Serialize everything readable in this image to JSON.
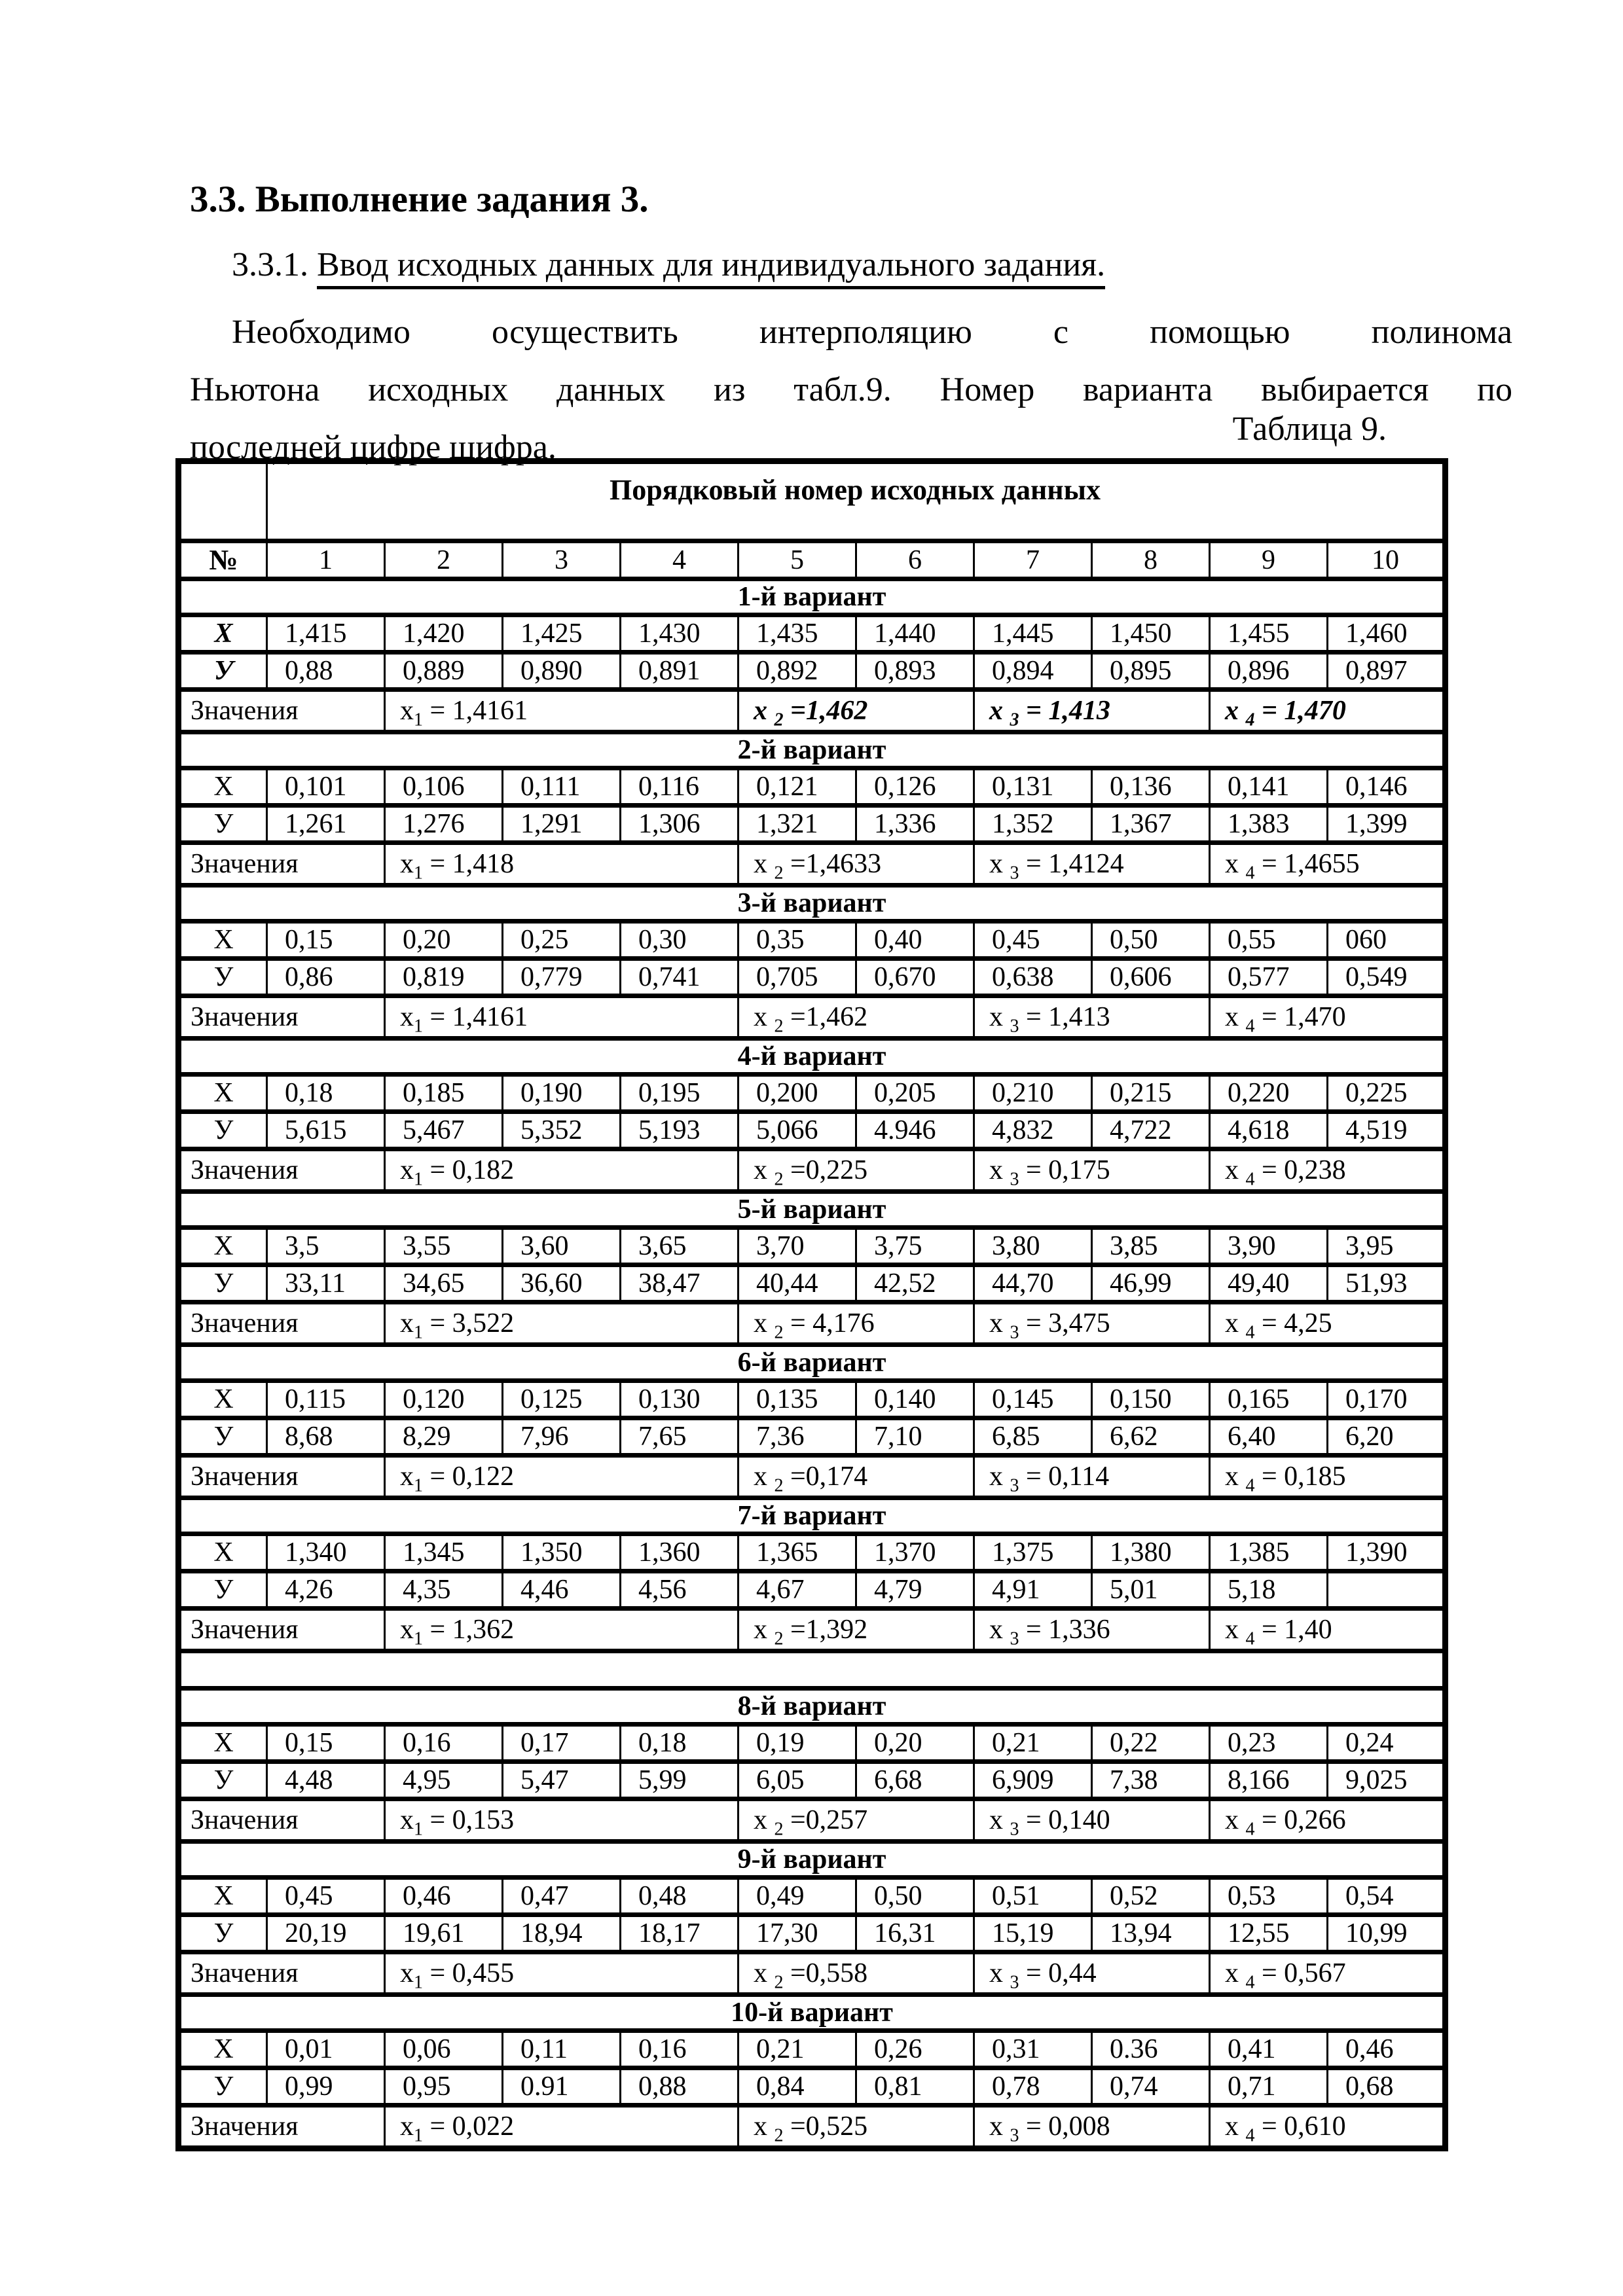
{
  "document": {
    "heading": "3.3. Выполнение задания 3.",
    "subsection_number": "3.3.1. ",
    "subsection_title": "Ввод исходных данных для индивидуального задания.",
    "paragraph_lines": [
      "Необходимо осуществить интерполяцию с помощью полинома",
      "Ньютона исходных данных из табл.9. Номер варианта выбирается по",
      "последней цифре шифра."
    ],
    "table_caption": "Таблица 9."
  },
  "table": {
    "header_title": "Порядковый номер исходных данных",
    "number_column_label": "№",
    "column_numbers": [
      "1",
      "2",
      "3",
      "4",
      "5",
      "6",
      "7",
      "8",
      "9",
      "10"
    ],
    "values_row_label": "Значения",
    "variants": [
      {
        "title": "1-й вариант",
        "x_label": "Х",
        "y_label": "У",
        "emphasis": true,
        "x": [
          "1,415",
          "1,420",
          "1,425",
          "1,430",
          "1,435",
          "1,440",
          "1,445",
          "1,450",
          "1,455",
          "1,460"
        ],
        "y": [
          "0,88",
          "0,889",
          "0,890",
          "0,891",
          "0,892",
          "0,893",
          "0,894",
          "0,895",
          "0,896",
          "0,897"
        ],
        "values": [
          {
            "pre": "x",
            "sub": "1",
            "text": " = 1,4161",
            "em": false
          },
          {
            "pre": "x ",
            "sub": "2",
            "text": " =1,462",
            "em": true
          },
          {
            "pre": "x ",
            "sub": "3",
            "text": " = 1,413",
            "em": true
          },
          {
            "pre": "x ",
            "sub": "4",
            "text": " = 1,470",
            "em": true
          }
        ]
      },
      {
        "title": "2-й вариант",
        "x_label": "Х",
        "y_label": "У",
        "emphasis": false,
        "x": [
          "0,101",
          "0,106",
          "0,111",
          "0,116",
          "0,121",
          "0,126",
          "0,131",
          "0,136",
          "0,141",
          "0,146"
        ],
        "y": [
          "1,261",
          "1,276",
          "1,291",
          "1,306",
          "1,321",
          "1,336",
          "1,352",
          "1,367",
          "1,383",
          "1,399"
        ],
        "values": [
          {
            "pre": "x",
            "sub": "1",
            "text": " = 1,418",
            "em": false
          },
          {
            "pre": "x ",
            "sub": "2",
            "text": " =1,4633",
            "em": false
          },
          {
            "pre": "x ",
            "sub": "3",
            "text": " = 1,4124",
            "em": false
          },
          {
            "pre": "x ",
            "sub": "4",
            "text": " = 1,4655",
            "em": false
          }
        ]
      },
      {
        "title": "3-й вариант",
        "x_label": "Х",
        "y_label": "У",
        "emphasis": false,
        "x": [
          "0,15",
          "0,20",
          "0,25",
          "0,30",
          "0,35",
          "0,40",
          "0,45",
          "0,50",
          "0,55",
          "060"
        ],
        "y": [
          "0,86",
          "0,819",
          "0,779",
          "0,741",
          "0,705",
          "0,670",
          "0,638",
          "0,606",
          "0,577",
          "0,549"
        ],
        "values": [
          {
            "pre": "x",
            "sub": "1",
            "text": " = 1,4161",
            "em": false
          },
          {
            "pre": "x ",
            "sub": "2",
            "text": " =1,462",
            "em": false
          },
          {
            "pre": "x ",
            "sub": "3",
            "text": " = 1,413",
            "em": false
          },
          {
            "pre": "x ",
            "sub": "4",
            "text": " = 1,470",
            "em": false
          }
        ]
      },
      {
        "title": "4-й вариант",
        "x_label": "Х",
        "y_label": "У",
        "emphasis": false,
        "x": [
          "0,18",
          "0,185",
          "0,190",
          "0,195",
          "0,200",
          "0,205",
          "0,210",
          "0,215",
          "0,220",
          "0,225"
        ],
        "y": [
          "5,615",
          "5,467",
          "5,352",
          "5,193",
          "5,066",
          "4.946",
          "4,832",
          "4,722",
          "4,618",
          "4,519"
        ],
        "values": [
          {
            "pre": "x",
            "sub": "1",
            "text": " = 0,182",
            "em": false
          },
          {
            "pre": "x ",
            "sub": "2",
            "text": " =0,225",
            "em": false
          },
          {
            "pre": "x ",
            "sub": "3",
            "text": " = 0,175",
            "em": false
          },
          {
            "pre": "x ",
            "sub": "4",
            "text": " = 0,238",
            "em": false
          }
        ]
      },
      {
        "title": "5-й вариант",
        "x_label": "Х",
        "y_label": "У",
        "emphasis": false,
        "x": [
          "3,5",
          "3,55",
          "3,60",
          "3,65",
          "3,70",
          "3,75",
          "3,80",
          "3,85",
          "3,90",
          "3,95"
        ],
        "y": [
          "33,11",
          "34,65",
          "36,60",
          "38,47",
          "40,44",
          "42,52",
          "44,70",
          "46,99",
          "49,40",
          "51,93"
        ],
        "values": [
          {
            "pre": "x",
            "sub": "1",
            "text": " = 3,522",
            "em": false
          },
          {
            "pre": "x ",
            "sub": "2",
            "text": " = 4,176",
            "em": false
          },
          {
            "pre": "x ",
            "sub": "3",
            "text": " = 3,475",
            "em": false
          },
          {
            "pre": "x ",
            "sub": "4",
            "text": " = 4,25",
            "em": false
          }
        ]
      },
      {
        "title": "6-й вариант",
        "x_label": "Х",
        "y_label": "У",
        "emphasis": false,
        "x": [
          "0,115",
          "0,120",
          "0,125",
          "0,130",
          "0,135",
          "0,140",
          "0,145",
          "0,150",
          "0,165",
          "0,170"
        ],
        "y": [
          "8,68",
          "8,29",
          "7,96",
          "7,65",
          "7,36",
          "7,10",
          "6,85",
          "6,62",
          "6,40",
          "6,20"
        ],
        "values": [
          {
            "pre": "x",
            "sub": "1",
            "text": " = 0,122",
            "em": false
          },
          {
            "pre": "x ",
            "sub": "2",
            "text": " =0,174",
            "em": false
          },
          {
            "pre": "x ",
            "sub": "3",
            "text": " = 0,114",
            "em": false
          },
          {
            "pre": "x ",
            "sub": "4",
            "text": " = 0,185",
            "em": false
          }
        ]
      },
      {
        "title": "7-й вариант",
        "x_label": "Х",
        "y_label": "У",
        "emphasis": false,
        "spacer_after": true,
        "x": [
          "1,340",
          "1,345",
          "1,350",
          "1,360",
          "1,365",
          "1,370",
          "1,375",
          "1,380",
          "1,385",
          "1,390"
        ],
        "y": [
          "4,26",
          "4,35",
          "4,46",
          "4,56",
          "4,67",
          "4,79",
          "4,91",
          "5,01",
          "5,18",
          ""
        ],
        "values": [
          {
            "pre": "x",
            "sub": "1",
            "text": " = 1,362",
            "em": false
          },
          {
            "pre": "x ",
            "sub": "2",
            "text": " =1,392",
            "em": false
          },
          {
            "pre": "x ",
            "sub": "3",
            "text": " = 1,336",
            "em": false
          },
          {
            "pre": "x ",
            "sub": "4",
            "text": " = 1,40",
            "em": false
          }
        ]
      },
      {
        "title": "8-й вариант",
        "x_label": "Х",
        "y_label": "У",
        "emphasis": false,
        "x": [
          "0,15",
          "0,16",
          "0,17",
          "0,18",
          "0,19",
          "0,20",
          "0,21",
          "0,22",
          "0,23",
          "0,24"
        ],
        "y": [
          "4,48",
          "4,95",
          "5,47",
          "5,99",
          "6,05",
          "6,68",
          "6,909",
          "7,38",
          "8,166",
          "9,025"
        ],
        "values": [
          {
            "pre": "x",
            "sub": "1",
            "text": " = 0,153",
            "em": false
          },
          {
            "pre": "x ",
            "sub": "2",
            "text": " =0,257",
            "em": false
          },
          {
            "pre": "x ",
            "sub": "3",
            "text": " = 0,140",
            "em": false
          },
          {
            "pre": "x ",
            "sub": "4",
            "text": " = 0,266",
            "em": false
          }
        ]
      },
      {
        "title": "9-й вариант",
        "x_label": "Х",
        "y_label": "У",
        "emphasis": false,
        "x": [
          "0,45",
          "0,46",
          "0,47",
          "0,48",
          "0,49",
          "0,50",
          "0,51",
          "0,52",
          "0,53",
          "0,54"
        ],
        "y": [
          "20,19",
          "19,61",
          "18,94",
          "18,17",
          "17,30",
          "16,31",
          "15,19",
          "13,94",
          "12,55",
          "10,99"
        ],
        "values": [
          {
            "pre": "x",
            "sub": "1",
            "text": " = 0,455",
            "em": false
          },
          {
            "pre": "x ",
            "sub": "2",
            "text": " =0,558",
            "em": false
          },
          {
            "pre": "x ",
            "sub": "3",
            "text": " = 0,44",
            "em": false
          },
          {
            "pre": "x ",
            "sub": "4",
            "text": " = 0,567",
            "em": false
          }
        ]
      },
      {
        "title": "10-й вариант",
        "x_label": "Х",
        "y_label": "У",
        "emphasis": false,
        "x": [
          "0,01",
          "0,06",
          "0,11",
          "0,16",
          "0,21",
          "0,26",
          "0,31",
          "0.36",
          "0,41",
          "0,46"
        ],
        "y": [
          "0,99",
          "0,95",
          "0.91",
          "0,88",
          "0,84",
          "0,81",
          "0,78",
          "0,74",
          "0,71",
          "0,68"
        ],
        "values": [
          {
            "pre": "x",
            "sub": "1",
            "text": " = 0,022",
            "em": false
          },
          {
            "pre": "x ",
            "sub": "2",
            "text": " =0,525",
            "em": false
          },
          {
            "pre": "x ",
            "sub": "3",
            "text": " = 0,008",
            "em": false
          },
          {
            "pre": "x ",
            "sub": "4",
            "text": " = 0,610",
            "em": false
          }
        ]
      }
    ]
  }
}
